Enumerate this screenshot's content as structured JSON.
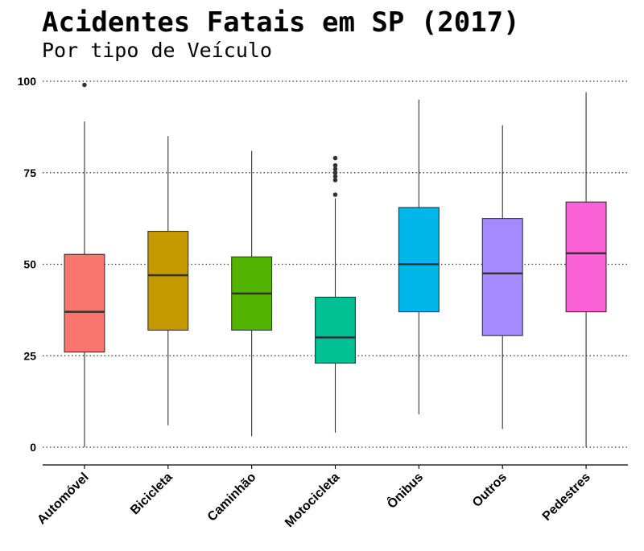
{
  "chart_data": {
    "type": "boxplot",
    "title": "Acidentes Fatais em SP (2017)",
    "subtitle": "Por tipo de Veículo",
    "xlabel": "",
    "ylabel": "",
    "ylim": [
      -5,
      102
    ],
    "yticks": [
      0,
      25,
      50,
      75,
      100
    ],
    "grid": "horizontal dotted",
    "legend": "none",
    "categories": [
      "Automóvel",
      "Bicicleta",
      "Caminhão",
      "Motocicleta",
      "Ônibus",
      "Outros",
      "Pedestres"
    ],
    "boxes": [
      {
        "category": "Automóvel",
        "min": 0,
        "q1": 26,
        "median": 37,
        "q3": 52.7,
        "max": 89,
        "outliers": [
          99
        ],
        "color": "#F8766D"
      },
      {
        "category": "Bicicleta",
        "min": 6,
        "q1": 32,
        "median": 47,
        "q3": 59,
        "max": 85,
        "outliers": [],
        "color": "#C49A00"
      },
      {
        "category": "Caminhão",
        "min": 3,
        "q1": 32,
        "median": 42,
        "q3": 52,
        "max": 81,
        "outliers": [],
        "color": "#53B400"
      },
      {
        "category": "Motocicleta",
        "min": 4,
        "q1": 23,
        "median": 30,
        "q3": 41,
        "max": 68,
        "outliers": [
          69,
          73,
          74,
          75,
          76,
          77,
          79
        ],
        "color": "#00C094"
      },
      {
        "category": "Ônibus",
        "min": 9,
        "q1": 37,
        "median": 50,
        "q3": 65.5,
        "max": 95,
        "outliers": [],
        "color": "#00B6EB"
      },
      {
        "category": "Outros",
        "min": 5,
        "q1": 30.5,
        "median": 47.5,
        "q3": 62.5,
        "max": 88,
        "outliers": [],
        "color": "#A58AFF"
      },
      {
        "category": "Pedestres",
        "min": 0,
        "q1": 37,
        "median": 53,
        "q3": 67,
        "max": 97,
        "outliers": [],
        "color": "#FB61D7"
      }
    ]
  }
}
